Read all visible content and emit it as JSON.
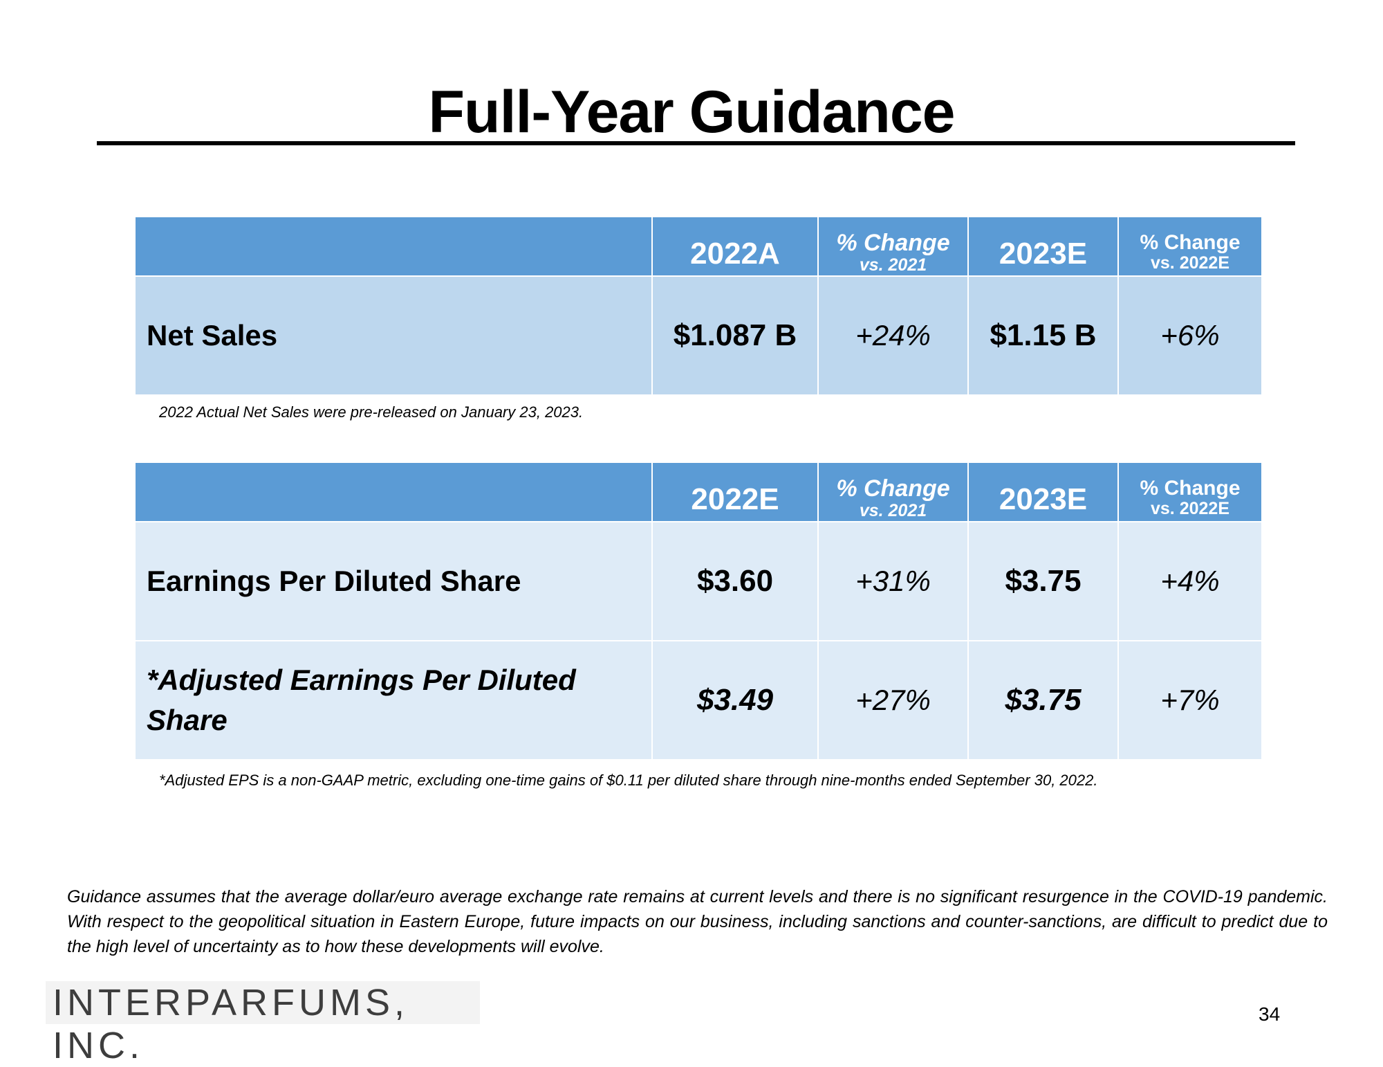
{
  "title": "Full-Year Guidance",
  "table1": {
    "col1": "2022A",
    "col2_l1": "% Change",
    "col2_l2": "vs. 2021",
    "col3": "2023E",
    "col4_l1": "% Change",
    "col4_l2": "vs. 2022E",
    "rows": [
      {
        "label": "Net Sales",
        "v1": "$1.087 B",
        "p1": "+24%",
        "v2": "$1.15 B",
        "p2": "+6%"
      }
    ],
    "note": "2022 Actual Net Sales were pre-released on January 23, 2023."
  },
  "table2": {
    "col1": "2022E",
    "col2_l1": "% Change",
    "col2_l2": "vs. 2021",
    "col3": "2023E",
    "col4_l1": "% Change",
    "col4_l2": "vs. 2022E",
    "rows": [
      {
        "label": "Earnings Per Diluted Share",
        "v1": "$3.60",
        "p1": "+31%",
        "v2": "$3.75",
        "p2": "+4%"
      },
      {
        "label_l1": "*Adjusted Earnings Per Diluted",
        "label_l2": "Share",
        "v1": "$3.49",
        "p1": "+27%",
        "v2": "$3.75",
        "p2": "+7%"
      }
    ],
    "note": "*Adjusted EPS is a non-GAAP metric, excluding one-time gains of $0.11 per diluted share through nine-months ended September 30, 2022."
  },
  "disclaimer": "Guidance assumes that the average dollar/euro average exchange rate remains at current levels and there is no significant resurgence in the COVID-19 pandemic. With respect to the geopolitical situation in Eastern Europe, future impacts on our business, including sanctions and counter-sanctions, are difficult to predict due to the high level of uncertainty as to how these developments will evolve.",
  "logo": "INTERPARFUMS, INC.",
  "page_number": "34",
  "colors": {
    "header_blue": "#5b9bd5",
    "row_blue": "#bdd7ee",
    "row_light": "#deebf7"
  }
}
